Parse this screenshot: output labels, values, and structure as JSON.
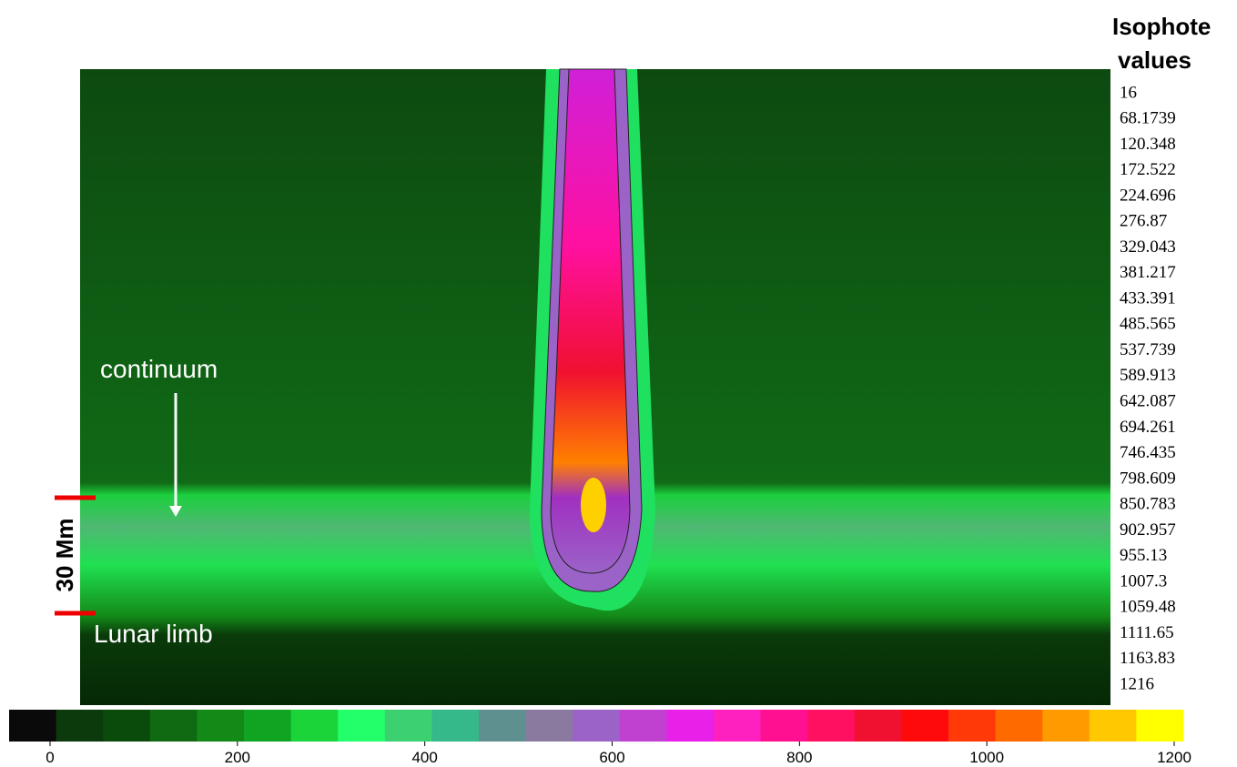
{
  "isophote_title": [
    "Isophote",
    "values"
  ],
  "isophote_values": [
    16,
    68.1739,
    120.348,
    172.522,
    224.696,
    276.87,
    329.043,
    381.217,
    433.391,
    485.565,
    537.739,
    589.913,
    642.087,
    694.261,
    746.435,
    798.609,
    850.783,
    902.957,
    955.13,
    1007.3,
    1059.48,
    1111.65,
    1163.83,
    1216
  ],
  "annotations": {
    "continuum": "continuum",
    "lunar_limb": "Lunar limb",
    "scale": "30 Mm"
  },
  "colorbar": {
    "ticks": [
      0,
      200,
      400,
      600,
      800,
      1000,
      1200
    ],
    "colors": [
      "#0a0a0a",
      "#0c3a0c",
      "#0a4a0a",
      "#0f6a12",
      "#138a18",
      "#11a322",
      "#1ad43a",
      "#22ff6a",
      "#3cd070",
      "#36b98a",
      "#5f9090",
      "#8a7aa0",
      "#9b63c8",
      "#c040d0",
      "#e820e8",
      "#ff20c0",
      "#ff1090",
      "#ff1060",
      "#f01030",
      "#ff0a0a",
      "#ff3a08",
      "#ff6a00",
      "#ff9a00",
      "#ffc800",
      "#ffff00"
    ]
  }
}
